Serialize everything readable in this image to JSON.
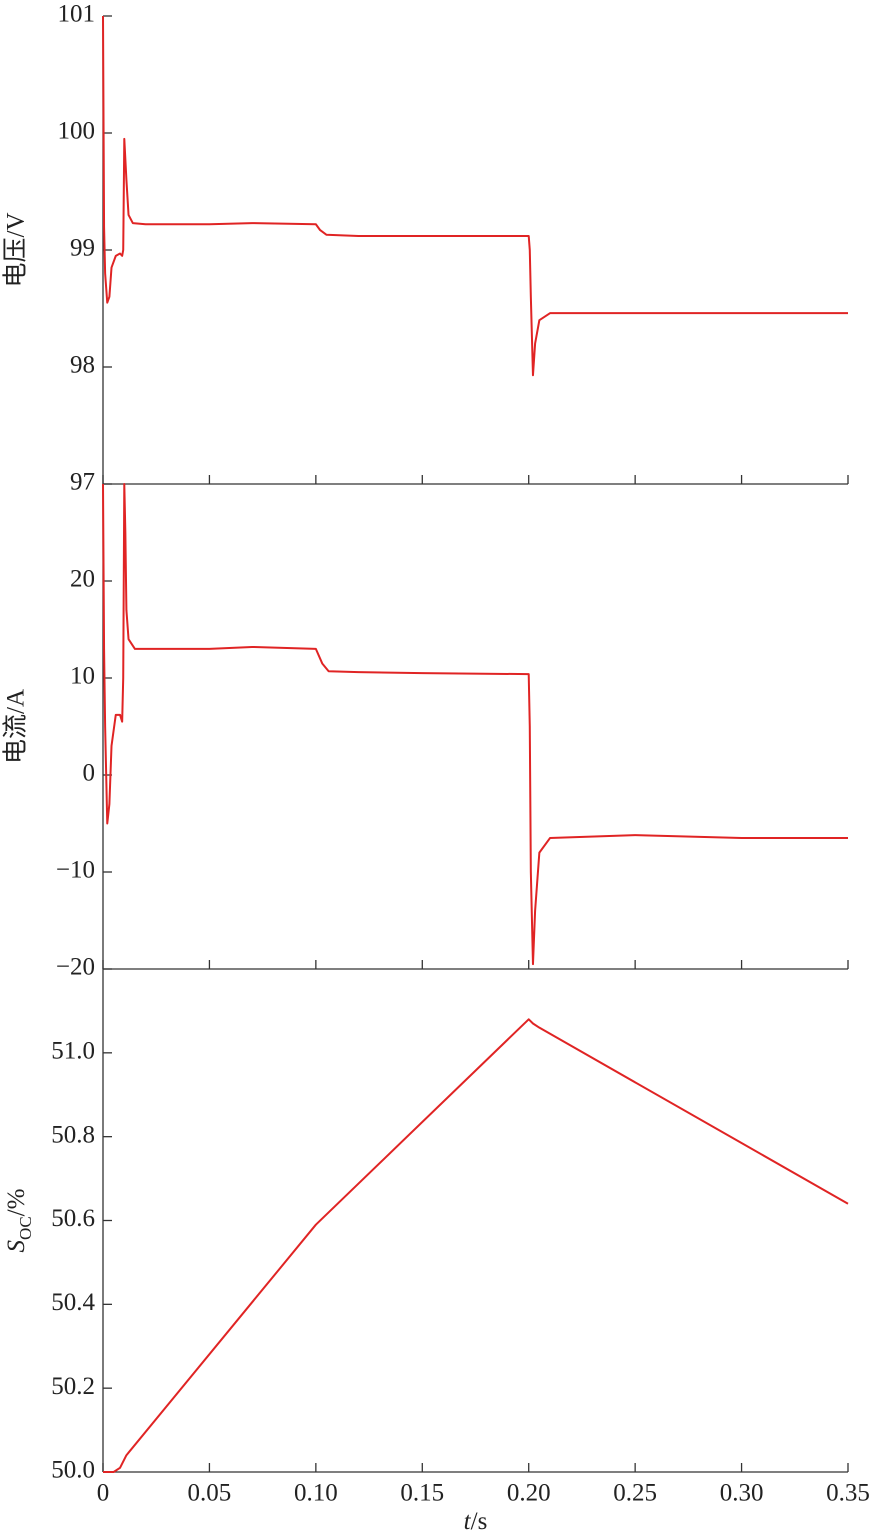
{
  "chart_data": [
    {
      "type": "line",
      "ylabel": "电压/V",
      "color": "#e02424",
      "x": [
        0,
        0.0005,
        0.001,
        0.002,
        0.003,
        0.004,
        0.006,
        0.008,
        0.009,
        0.0095,
        0.01,
        0.011,
        0.012,
        0.014,
        0.02,
        0.05,
        0.07,
        0.1,
        0.102,
        0.105,
        0.12,
        0.15,
        0.2,
        0.2005,
        0.201,
        0.202,
        0.203,
        0.205,
        0.21,
        0.25,
        0.3,
        0.35
      ],
      "values": [
        101,
        99.2,
        98.8,
        98.55,
        98.6,
        98.85,
        98.95,
        98.97,
        98.95,
        99.0,
        99.95,
        99.6,
        99.3,
        99.23,
        99.22,
        99.22,
        99.23,
        99.22,
        99.17,
        99.13,
        99.12,
        99.12,
        99.12,
        99.0,
        98.6,
        97.93,
        98.2,
        98.4,
        98.46,
        98.46,
        98.46,
        98.46
      ],
      "ylim": [
        97,
        101
      ],
      "yticks": [
        97,
        98,
        99,
        100,
        101
      ]
    },
    {
      "type": "line",
      "ylabel": "电流/A",
      "color": "#e02424",
      "x": [
        0,
        0.0005,
        0.001,
        0.002,
        0.003,
        0.004,
        0.006,
        0.008,
        0.009,
        0.0095,
        0.01,
        0.0105,
        0.011,
        0.012,
        0.015,
        0.05,
        0.07,
        0.1,
        0.103,
        0.106,
        0.12,
        0.15,
        0.2,
        0.2005,
        0.201,
        0.202,
        0.203,
        0.205,
        0.21,
        0.25,
        0.3,
        0.35
      ],
      "values": [
        30,
        13,
        5,
        -5,
        -3,
        3,
        6.2,
        6.2,
        5.5,
        10,
        30,
        25,
        17,
        14,
        13,
        13,
        13.2,
        13,
        11.5,
        10.7,
        10.6,
        10.5,
        10.4,
        5,
        -10,
        -19.5,
        -14,
        -8,
        -6.5,
        -6.2,
        -6.5,
        -6.5
      ],
      "ylim": [
        -20,
        30
      ],
      "yticks": [
        {
          "value": -20,
          "label": "−20"
        },
        {
          "value": -10,
          "label": "−10"
        },
        0,
        10,
        20
      ]
    },
    {
      "type": "line",
      "ylabel": [
        "S",
        "OC",
        "/%"
      ],
      "xlabel": [
        "t",
        "/s"
      ],
      "color": "#e02424",
      "x": [
        0,
        0.005,
        0.008,
        0.011,
        0.1,
        0.2,
        0.202,
        0.205,
        0.35
      ],
      "values": [
        50.0,
        50.0,
        50.01,
        50.04,
        50.59,
        51.08,
        51.07,
        51.06,
        50.64
      ],
      "ylim": [
        50,
        51.2
      ],
      "yticks": [
        {
          "value": 50,
          "label": "50.0"
        },
        50.2,
        50.4,
        50.6,
        50.8,
        {
          "value": 51,
          "label": "51.0"
        }
      ],
      "xlim": [
        0,
        0.35
      ],
      "xticks": [
        0,
        0.05,
        {
          "value": 0.1,
          "label": "0.10"
        },
        0.15,
        {
          "value": 0.2,
          "label": "0.20"
        },
        0.25,
        {
          "value": 0.3,
          "label": "0.30"
        },
        0.35
      ]
    }
  ]
}
